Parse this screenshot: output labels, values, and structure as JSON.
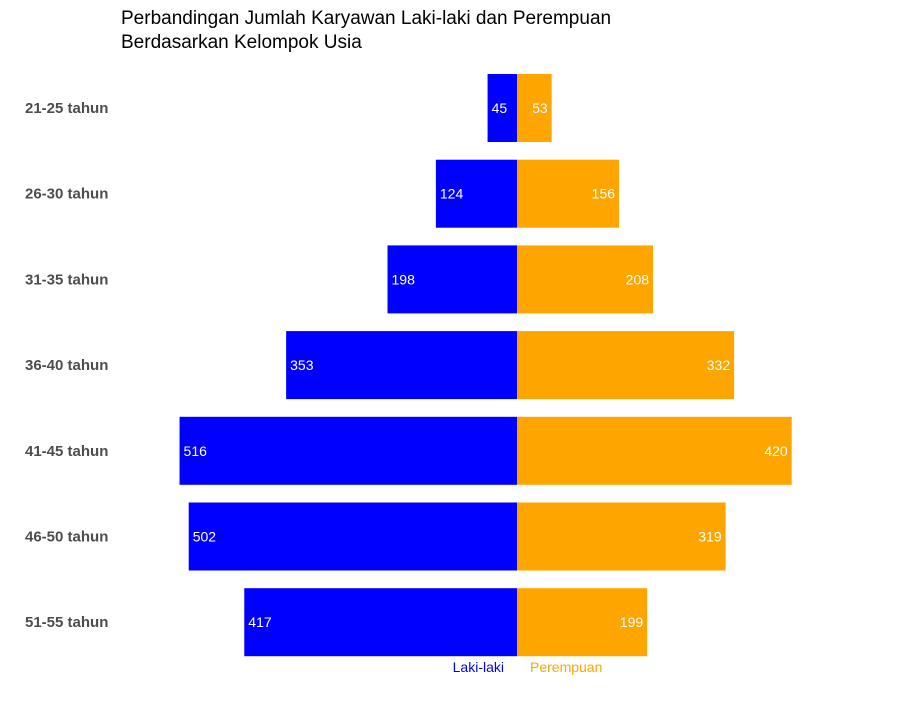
{
  "chart_data": {
    "type": "bar",
    "orientation": "horizontal-diverging",
    "title": "Perbandingan Jumlah Karyawan Laki-laki dan Perempuan",
    "subtitle": "Berdasarkan Kelompok Usia",
    "categories": [
      "21-25 tahun",
      "26-30 tahun",
      "31-35 tahun",
      "36-40 tahun",
      "41-45 tahun",
      "46-50 tahun",
      "51-55 tahun"
    ],
    "series": [
      {
        "name": "Laki-laki",
        "side": "left",
        "color": "#0000ff",
        "values": [
          45,
          124,
          198,
          353,
          516,
          502,
          417
        ]
      },
      {
        "name": "Perempuan",
        "side": "right",
        "color": "#ffa500",
        "values": [
          53,
          156,
          208,
          332,
          420,
          319,
          199
        ]
      }
    ],
    "xlabel": "",
    "ylabel": "",
    "grid": false,
    "legend": "bottom-center"
  }
}
